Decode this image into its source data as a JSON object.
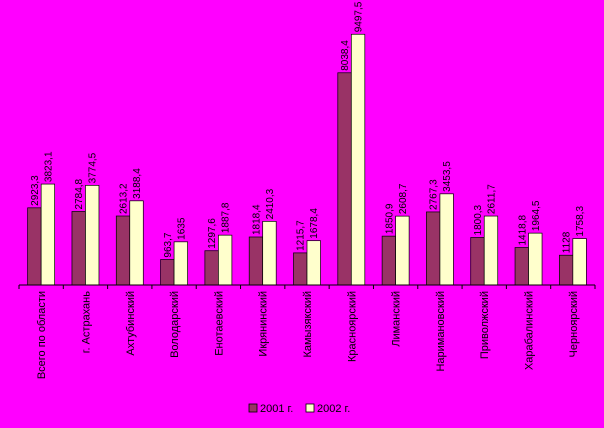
{
  "chart_data": {
    "type": "bar",
    "categories": [
      "Всего по области",
      "г. Астрахань",
      "Ахтубинский",
      "Володарский",
      "Енотаевский",
      "Икрянинский",
      "Камызякский",
      "Красноярский",
      "Лиманский",
      "Наримановский",
      "Приволжский",
      "Харабалинский",
      "Черноярский"
    ],
    "series": [
      {
        "name": "2001 г.",
        "values": [
          2923.3,
          2784.8,
          2613.2,
          963.7,
          1297.6,
          1818.4,
          1215.7,
          8038.4,
          1850.9,
          2767.3,
          1800.3,
          1418.8,
          1128
        ],
        "labels": [
          "2923,3",
          "2784,8",
          "2613,2",
          "963,7",
          "1297,6",
          "1818,4",
          "1215,7",
          "8038,4",
          "1850,9",
          "2767,3",
          "1800,3",
          "1418,8",
          "1128"
        ],
        "color": "#993366"
      },
      {
        "name": "2002 г.",
        "values": [
          3823.1,
          3774.5,
          3188.4,
          1635,
          1887.8,
          2410.3,
          1678.4,
          9497.5,
          2608.7,
          3453.5,
          2611.7,
          1964.5,
          1758.3
        ],
        "labels": [
          "3823,1",
          "3774,5",
          "3188,4",
          "1635",
          "1887,8",
          "2410,3",
          "1678,4",
          "9497,5",
          "2608,7",
          "3453,5",
          "2611,7",
          "1964,5",
          "1758,3"
        ],
        "color": "#ffffcc"
      }
    ],
    "ylim": [
      0,
      10000
    ],
    "grid": false,
    "legend": "bottom"
  }
}
